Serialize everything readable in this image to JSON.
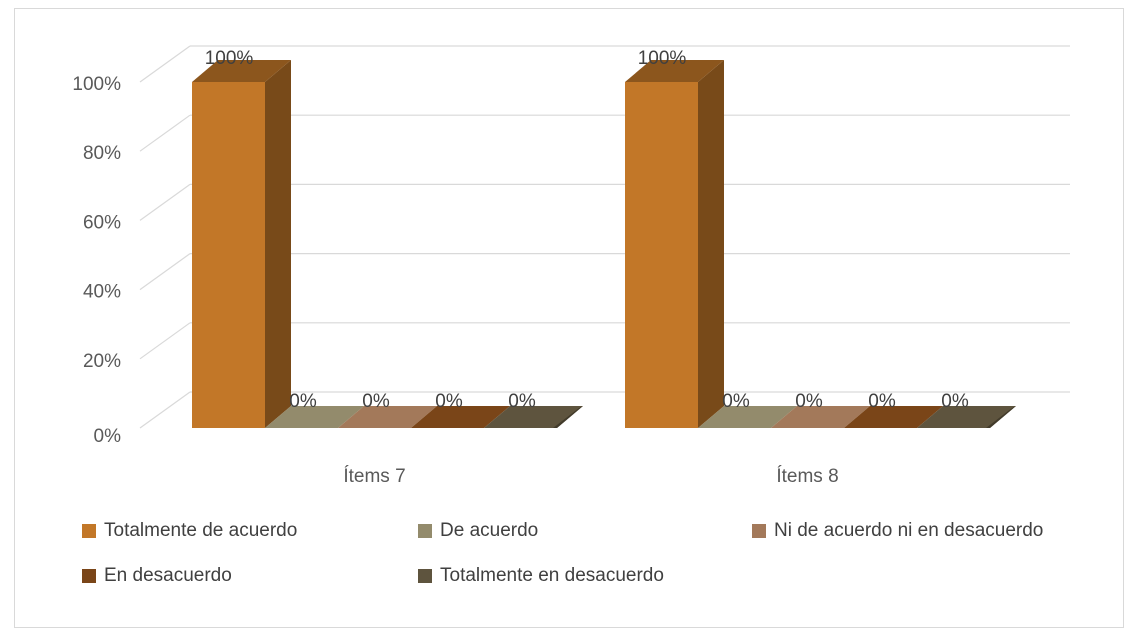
{
  "chart_data": {
    "type": "bar",
    "categories": [
      "Ítems 7",
      "Ítems 8"
    ],
    "series": [
      {
        "name": "Totalmente de acuerdo",
        "values": [
          100,
          100
        ],
        "labels": [
          "100%",
          "100%"
        ],
        "color": "#C27728"
      },
      {
        "name": "De acuerdo",
        "values": [
          0,
          0
        ],
        "labels": [
          "0%",
          "0%"
        ],
        "color": "#938B6C"
      },
      {
        "name": "Ni de acuerdo ni en desacuerdo",
        "values": [
          0,
          0
        ],
        "labels": [
          "0%",
          "0%"
        ],
        "color": "#A3795A"
      },
      {
        "name": "En desacuerdo",
        "values": [
          0,
          0
        ],
        "labels": [
          "0%",
          "0%"
        ],
        "color": "#7A4518"
      },
      {
        "name": "Totalmente en desacuerdo",
        "values": [
          0,
          0
        ],
        "labels": [
          "0%",
          "0%"
        ],
        "color": "#5E543E"
      }
    ],
    "yticks": [
      "0%",
      "20%",
      "40%",
      "60%",
      "80%",
      "100%"
    ],
    "ylim": [
      0,
      100
    ],
    "legend_position": "bottom",
    "grid": true,
    "style": "3d-column"
  }
}
